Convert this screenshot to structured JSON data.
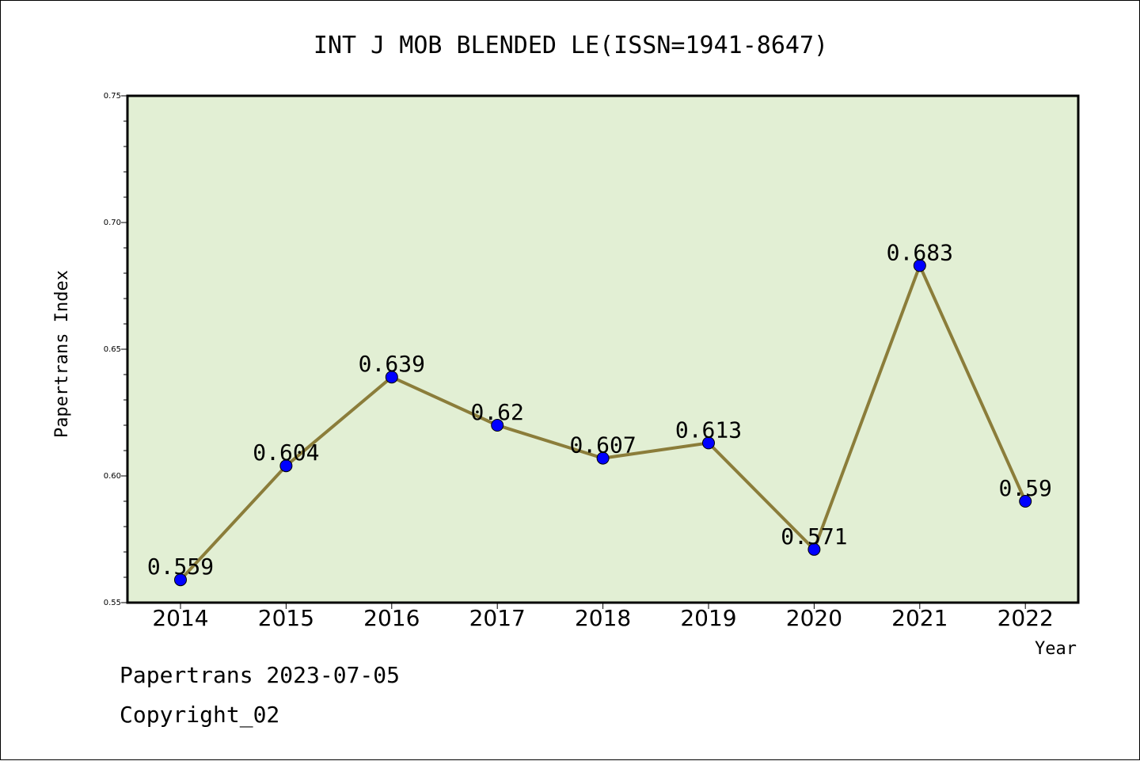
{
  "chart_data": {
    "type": "line",
    "title": "INT J MOB BLENDED LE(ISSN=1941-8647)",
    "xlabel": "Year",
    "ylabel": "Papertrans Index",
    "categories": [
      "2014",
      "2015",
      "2016",
      "2017",
      "2018",
      "2019",
      "2020",
      "2021",
      "2022"
    ],
    "values": [
      0.559,
      0.604,
      0.639,
      0.62,
      0.607,
      0.613,
      0.571,
      0.683,
      0.59
    ],
    "data_labels": [
      "0.559",
      "0.604",
      "0.639",
      "0.62",
      "0.607",
      "0.613",
      "0.571",
      "0.683",
      "0.59"
    ],
    "ylim": [
      0.55,
      0.75
    ],
    "yticks": [
      0.55,
      0.6,
      0.65,
      0.7,
      0.75
    ],
    "ytick_labels": [
      "0.55",
      "0.60",
      "0.65",
      "0.70",
      "0.75"
    ],
    "grid": false,
    "colors": {
      "plot_background": "#e2efd4",
      "line": "#8b7d3a",
      "marker": "#0000ff"
    }
  },
  "footer": {
    "line1": "Papertrans 2023-07-05",
    "line2": "Copyright_02"
  }
}
